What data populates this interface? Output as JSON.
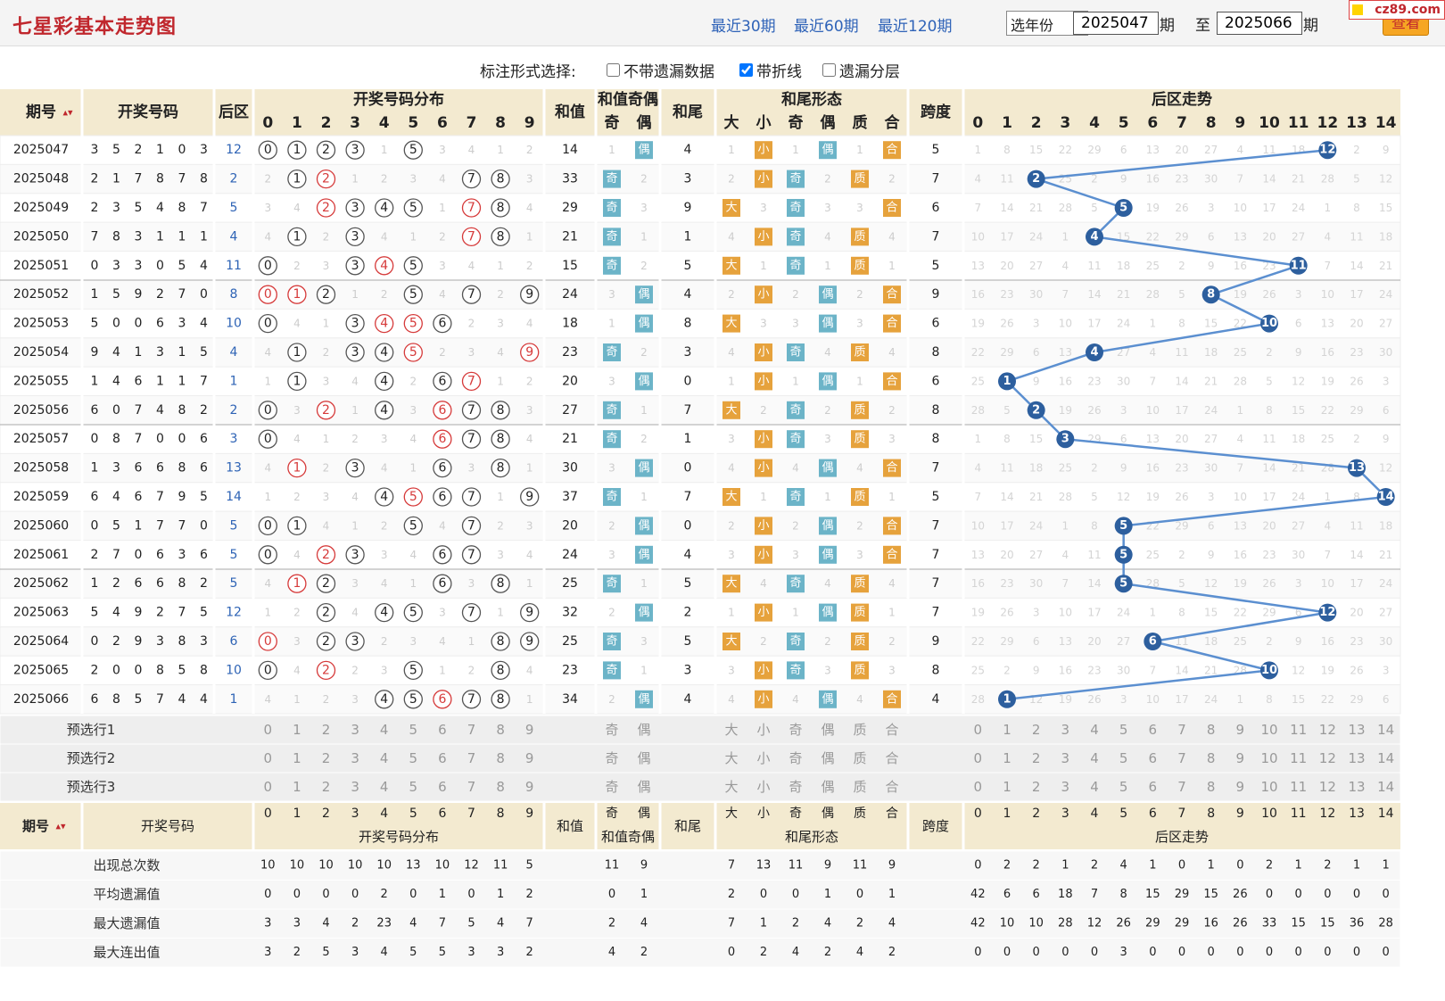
{
  "header": {
    "title": "七星彩基本走势图",
    "period_links": [
      "最近30期",
      "最近60期",
      "最近120期"
    ],
    "year_select": "选年份",
    "from_value": "2025047",
    "period_word": "期",
    "to_word": "至",
    "to_value": "2025066",
    "query_button": "查看",
    "logo_text": "cz89.com"
  },
  "options": {
    "label": "标注形式选择:",
    "items": [
      {
        "label": "不带遗漏数据",
        "checked": false
      },
      {
        "label": "带折线",
        "checked": true
      },
      {
        "label": "遗漏分层",
        "checked": false
      }
    ]
  },
  "table": {
    "headers": {
      "period": "期号",
      "numbers": "开奖号码",
      "back": "后区",
      "dist": "开奖号码分布",
      "sum": "和值",
      "sum_oe": "和值奇偶",
      "odd": "奇",
      "even": "偶",
      "tail": "和尾",
      "tail_shape": "和尾形态",
      "big": "大",
      "small": "小",
      "prime": "质",
      "composite": "合",
      "span": "跨度",
      "back_trend": "后区走势"
    },
    "rows": [
      {
        "p": "2025047",
        "n": [
          3,
          5,
          2,
          1,
          0,
          3
        ],
        "b": 12,
        "s": 14,
        "t": 4,
        "sp": 5
      },
      {
        "p": "2025048",
        "n": [
          2,
          1,
          7,
          8,
          7,
          8
        ],
        "b": 2,
        "s": 33,
        "t": 3,
        "sp": 7
      },
      {
        "p": "2025049",
        "n": [
          2,
          3,
          5,
          4,
          8,
          7
        ],
        "b": 5,
        "s": 29,
        "t": 9,
        "sp": 6
      },
      {
        "p": "2025050",
        "n": [
          7,
          8,
          3,
          1,
          1,
          1
        ],
        "b": 4,
        "s": 21,
        "t": 1,
        "sp": 7
      },
      {
        "p": "2025051",
        "n": [
          0,
          3,
          3,
          0,
          5,
          4
        ],
        "b": 11,
        "s": 15,
        "t": 5,
        "sp": 5
      },
      {
        "p": "2025052",
        "n": [
          1,
          5,
          9,
          2,
          7,
          0
        ],
        "b": 8,
        "s": 24,
        "t": 4,
        "sp": 9
      },
      {
        "p": "2025053",
        "n": [
          5,
          0,
          0,
          6,
          3,
          4
        ],
        "b": 10,
        "s": 18,
        "t": 8,
        "sp": 6
      },
      {
        "p": "2025054",
        "n": [
          9,
          4,
          1,
          3,
          1,
          5
        ],
        "b": 4,
        "s": 23,
        "t": 3,
        "sp": 8
      },
      {
        "p": "2025055",
        "n": [
          1,
          4,
          6,
          1,
          1,
          7
        ],
        "b": 1,
        "s": 20,
        "t": 0,
        "sp": 6
      },
      {
        "p": "2025056",
        "n": [
          6,
          0,
          7,
          4,
          8,
          2
        ],
        "b": 2,
        "s": 27,
        "t": 7,
        "sp": 8
      },
      {
        "p": "2025057",
        "n": [
          0,
          8,
          7,
          0,
          0,
          6
        ],
        "b": 3,
        "s": 21,
        "t": 1,
        "sp": 8
      },
      {
        "p": "2025058",
        "n": [
          1,
          3,
          6,
          6,
          8,
          6
        ],
        "b": 13,
        "s": 30,
        "t": 0,
        "sp": 7
      },
      {
        "p": "2025059",
        "n": [
          6,
          4,
          6,
          7,
          9,
          5
        ],
        "b": 14,
        "s": 37,
        "t": 7,
        "sp": 5
      },
      {
        "p": "2025060",
        "n": [
          0,
          5,
          1,
          7,
          7,
          0
        ],
        "b": 5,
        "s": 20,
        "t": 0,
        "sp": 7
      },
      {
        "p": "2025061",
        "n": [
          2,
          7,
          0,
          6,
          3,
          6
        ],
        "b": 5,
        "s": 24,
        "t": 4,
        "sp": 7
      },
      {
        "p": "2025062",
        "n": [
          1,
          2,
          6,
          6,
          8,
          2
        ],
        "b": 5,
        "s": 25,
        "t": 5,
        "sp": 7
      },
      {
        "p": "2025063",
        "n": [
          5,
          4,
          9,
          2,
          7,
          5
        ],
        "b": 12,
        "s": 32,
        "t": 2,
        "sp": 7
      },
      {
        "p": "2025064",
        "n": [
          0,
          2,
          9,
          3,
          8,
          3
        ],
        "b": 6,
        "s": 25,
        "t": 5,
        "sp": 9
      },
      {
        "p": "2025065",
        "n": [
          2,
          0,
          0,
          8,
          5,
          8
        ],
        "b": 10,
        "s": 23,
        "t": 3,
        "sp": 8
      },
      {
        "p": "2025066",
        "n": [
          6,
          8,
          5,
          7,
          4,
          4
        ],
        "b": 1,
        "s": 34,
        "t": 4,
        "sp": 4
      }
    ],
    "select_rows": [
      "预选行1",
      "预选行2",
      "预选行3"
    ],
    "bottom_period": "期号",
    "stats": [
      {
        "label": "出现总次数",
        "dist": [
          10,
          10,
          10,
          10,
          10,
          13,
          10,
          12,
          11,
          5
        ],
        "oe": [
          11,
          9
        ],
        "shape": [
          7,
          13,
          11,
          9,
          11,
          9
        ],
        "back": [
          0,
          2,
          2,
          1,
          2,
          4,
          1,
          0,
          1,
          0,
          2,
          1,
          2,
          1,
          1
        ]
      },
      {
        "label": "平均遗漏值",
        "dist": [
          0,
          0,
          0,
          0,
          2,
          0,
          1,
          0,
          1,
          2
        ],
        "oe": [
          0,
          1
        ],
        "shape": [
          2,
          0,
          0,
          1,
          0,
          1
        ],
        "back": [
          42,
          6,
          6,
          18,
          7,
          8,
          15,
          29,
          15,
          26,
          0,
          0,
          0,
          0,
          0
        ]
      },
      {
        "label": "最大遗漏值",
        "dist": [
          3,
          3,
          4,
          2,
          23,
          4,
          7,
          5,
          4,
          7
        ],
        "oe": [
          2,
          4
        ],
        "shape": [
          7,
          1,
          2,
          4,
          2,
          4
        ],
        "back": [
          42,
          10,
          10,
          28,
          12,
          26,
          29,
          29,
          16,
          26,
          33,
          15,
          15,
          36,
          28
        ]
      },
      {
        "label": "最大连出值",
        "dist": [
          3,
          2,
          5,
          3,
          4,
          5,
          5,
          3,
          3,
          2
        ],
        "oe": [
          4,
          2
        ],
        "shape": [
          0,
          2,
          4,
          2,
          4,
          2
        ],
        "back": [
          0,
          0,
          0,
          0,
          0,
          3,
          0,
          0,
          0,
          0,
          0,
          0,
          0,
          0,
          0
        ]
      }
    ]
  },
  "colors": {
    "header_bg": "#f3ead0",
    "row_bg": "#ffffff",
    "sep_bg": "#eeeeee",
    "red": "#d63a3a",
    "blue": "#2e63b5",
    "tag_orange": "#e6a23c",
    "tag_blue": "#6cb4c8",
    "line": "#5b8fd0",
    "title_red": "#c0272d"
  }
}
